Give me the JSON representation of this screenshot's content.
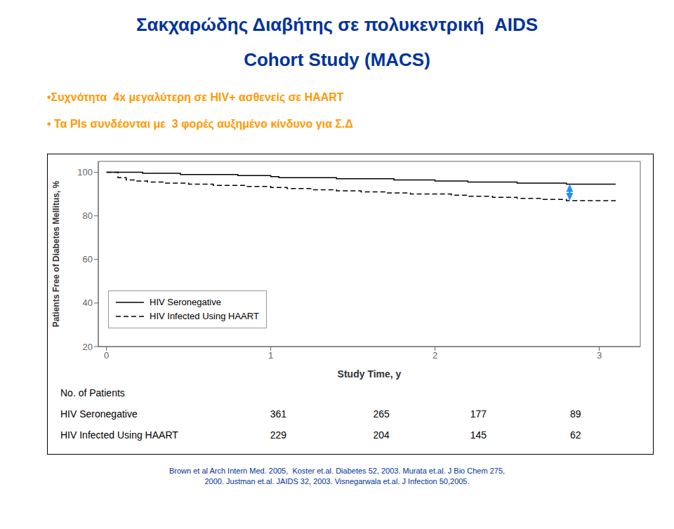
{
  "chart_data": {
    "type": "line",
    "title": "Σακχαρώδης Διαβήτης σε πολυκεντρική  AIDS",
    "subtitle": "Cohort Study (MACS)",
    "title_color": "#003399",
    "xlabel": "Study Time, y",
    "ylabel": "Patients Free of Diabetes Mellitus, %",
    "xlim": [
      -0.05,
      3.25
    ],
    "ylim": [
      20,
      105
    ],
    "xticks": [
      0,
      1,
      2,
      3
    ],
    "yticks": [
      20,
      40,
      60,
      80,
      100
    ],
    "legend": "lower left",
    "series": [
      {
        "name": "HIV Seronegative",
        "type": "step",
        "color": "#000000",
        "line_style": "solid",
        "x": [
          0,
          0.08,
          0.12,
          0.18,
          0.22,
          0.3,
          0.45,
          0.6,
          0.8,
          1.0,
          1.05,
          1.2,
          1.4,
          1.6,
          1.75,
          1.85,
          2.0,
          2.1,
          2.2,
          2.35,
          2.5,
          2.65,
          2.8,
          2.95,
          3.1
        ],
        "values": [
          100,
          100,
          100,
          100,
          99.5,
          99.5,
          99.0,
          99.0,
          98.5,
          98.0,
          97.5,
          97.5,
          97.0,
          97.0,
          96.5,
          96.5,
          96.0,
          96.0,
          95.5,
          95.5,
          95.0,
          95.0,
          94.5,
          94.5,
          94.5
        ]
      },
      {
        "name": "HIV Infected Using HAART",
        "type": "step",
        "color": "#000000",
        "line_style": "dashed",
        "x": [
          0,
          0.07,
          0.12,
          0.18,
          0.25,
          0.35,
          0.5,
          0.65,
          0.85,
          1.0,
          1.1,
          1.25,
          1.4,
          1.55,
          1.7,
          1.85,
          2.0,
          2.1,
          2.2,
          2.35,
          2.5,
          2.65,
          2.8,
          2.95,
          3.1
        ],
        "values": [
          100,
          97.5,
          96.5,
          96.0,
          95.5,
          95.0,
          94.5,
          94.0,
          93.5,
          93.0,
          92.5,
          92.0,
          91.5,
          91.0,
          90.5,
          90.0,
          90.0,
          89.5,
          89.0,
          88.5,
          88.0,
          87.5,
          87.0,
          87.0,
          87.0
        ]
      }
    ],
    "annotations": [
      {
        "type": "text",
        "text": "•Συχνότητα  4x μεγαλύτερη σε HIV+ ασθενείς σε HAART",
        "color": "#FF9900"
      },
      {
        "type": "text",
        "text": "• Τα PIs συνδέονται με  3 φορές αυξημένο κίνδυνο για Σ.Δ",
        "color": "#FF9900"
      },
      {
        "type": "arrow",
        "x": 2.82,
        "y_top": 94.5,
        "y_bottom": 87.0,
        "color": "#1E90FF"
      }
    ],
    "table": {
      "header": "No. of Patients",
      "rows": [
        {
          "name": "HIV Seronegative",
          "values": [
            361,
            265,
            177,
            89
          ]
        },
        {
          "name": "HIV Infected Using HAART",
          "values": [
            229,
            204,
            145,
            62
          ]
        }
      ]
    },
    "footnote": {
      "text": "Brown et al Arch Intern Med. 2005,  Koster et.al. Diabetes 52, 2003. Murata et.al. J Bio Chem 275,\n2000. Justman et.al. JAIDS 32, 2003. Visnegarwala et.al. J Infection 50,2005.",
      "color": "#003399"
    }
  }
}
